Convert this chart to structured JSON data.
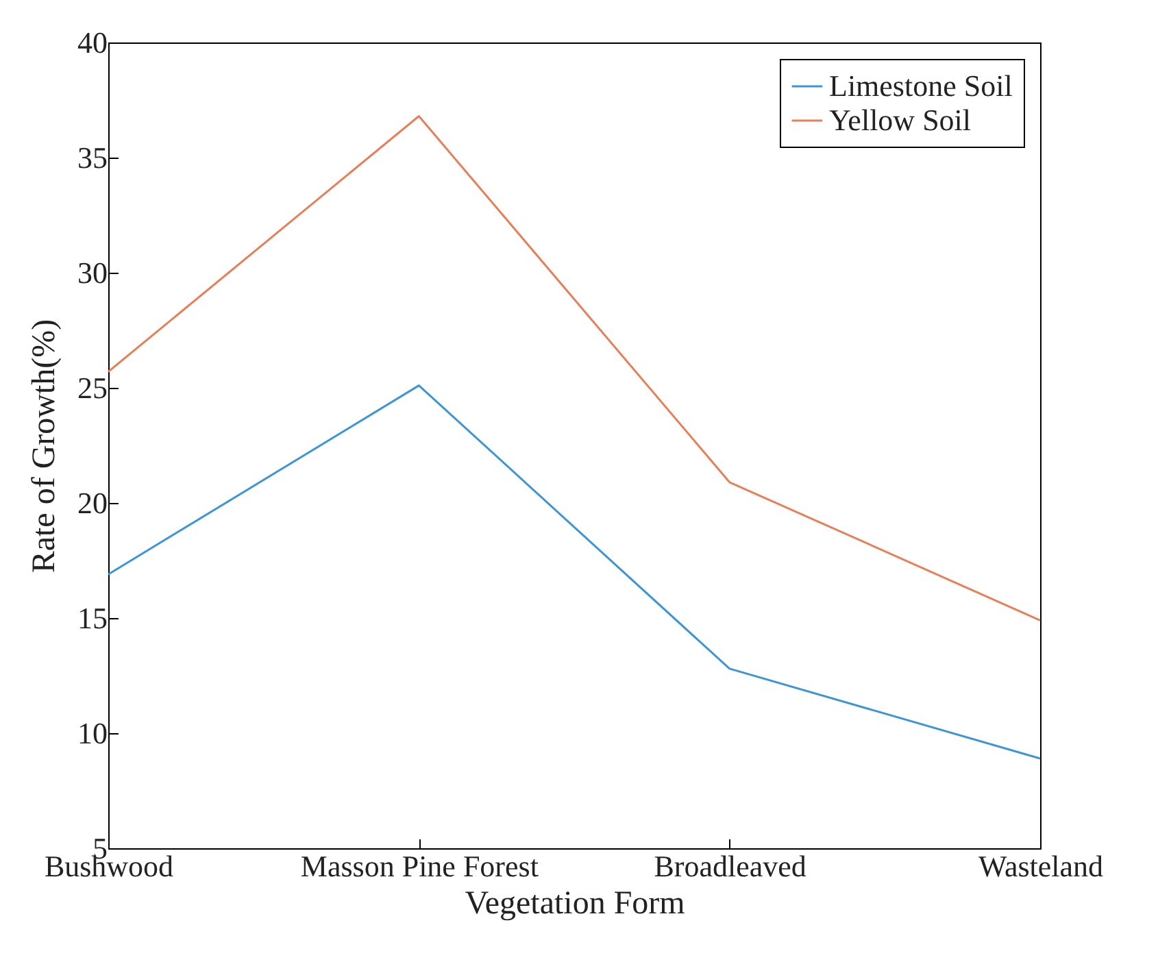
{
  "chart_data": {
    "type": "line",
    "xlabel": "Vegetation Form",
    "ylabel": "Rate of Growth(%)",
    "categories": [
      "Bushwood",
      "Masson Pine Forest",
      "Broadleaved",
      "Wasteland"
    ],
    "series": [
      {
        "name": "Limestone Soil",
        "color": "#3d95d6",
        "values": [
          16.9,
          25.1,
          12.8,
          8.9
        ]
      },
      {
        "name": "Yellow Soil",
        "color": "#e5805a",
        "values": [
          25.7,
          36.8,
          20.9,
          14.9
        ]
      }
    ],
    "ylim": [
      5,
      40
    ],
    "yticks": [
      5,
      10,
      15,
      20,
      25,
      30,
      35,
      40
    ],
    "grid": false,
    "legend": "top right",
    "marker": "none",
    "line_style": "solid"
  }
}
